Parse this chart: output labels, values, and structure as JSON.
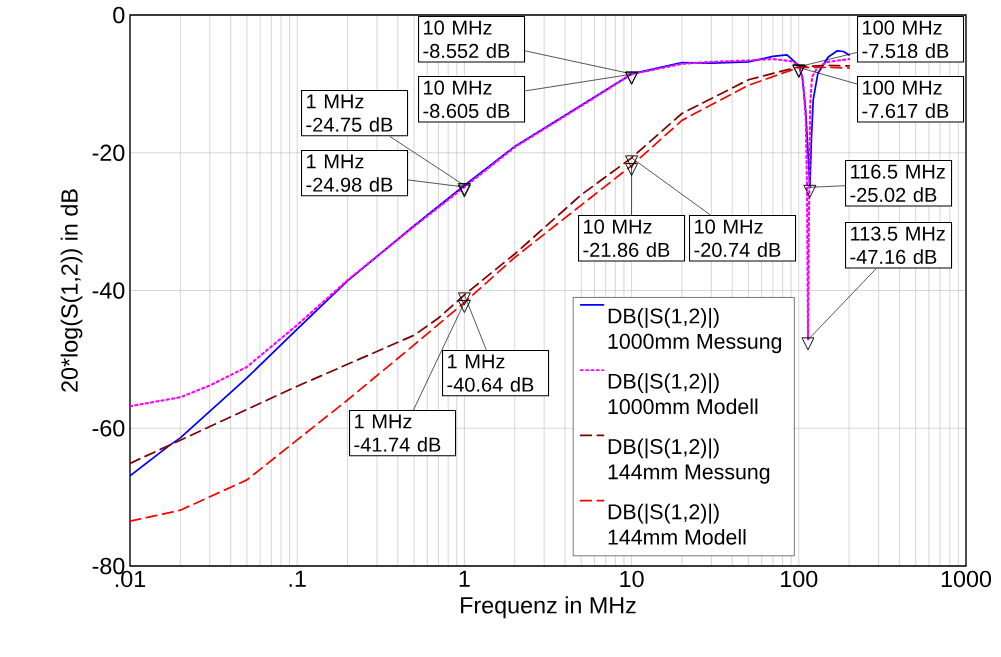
{
  "chart_data": {
    "type": "line",
    "xlabel": "Frequenz in MHz",
    "ylabel": "20*log(S(1,2)) in dB",
    "log": "x",
    "grid": true,
    "legend": "bottom right",
    "marker": "none",
    "xlim": [
      0.01,
      1000
    ],
    "ylim": [
      -80,
      0
    ],
    "xticks": [
      {
        "value": 0.01,
        "label": ".01"
      },
      {
        "value": 0.1,
        "label": ".1"
      },
      1,
      10,
      100,
      1000
    ],
    "yticks": [
      -80,
      -60,
      -40,
      -20,
      0
    ],
    "series": [
      {
        "name": "DB(|S(1,2)|) 1000mm Messung",
        "color": "#0000ff",
        "line_style": "solid",
        "x": [
          0.01,
          0.017,
          0.02,
          0.05,
          0.1,
          0.2,
          0.5,
          1,
          2,
          5,
          10,
          20,
          30,
          50,
          70,
          85,
          100,
          105,
          110,
          113,
          116.5,
          119,
          122,
          130,
          150,
          170,
          185,
          200
        ],
        "values": [
          -66.9,
          -62.6,
          -61.4,
          -52.7,
          -45.6,
          -38.6,
          -30.6,
          -24.75,
          -19.1,
          -13.1,
          -8.552,
          -6.9,
          -7.0,
          -6.8,
          -6.0,
          -5.8,
          -7.3,
          -9,
          -14,
          -19,
          -25.02,
          -18,
          -12.3,
          -8.5,
          -6.1,
          -5.2,
          -5.3,
          -5.8
        ]
      },
      {
        "name": "DB(|S(1,2)|) 1000mm Modell",
        "color": "#ff00ff",
        "line_style": "dotted",
        "x": [
          0.01,
          0.02,
          0.03,
          0.05,
          0.1,
          0.2,
          0.5,
          1,
          2,
          5,
          10,
          20,
          30,
          50,
          70,
          90,
          100,
          106,
          110,
          112,
          113.5,
          115,
          117,
          120,
          130,
          150,
          200
        ],
        "values": [
          -56.8,
          -55.5,
          -53.8,
          -51.1,
          -45.0,
          -38.5,
          -30.7,
          -24.98,
          -19.2,
          -13.2,
          -8.605,
          -7.1,
          -6.8,
          -6.6,
          -6.4,
          -6.7,
          -7.3,
          -9.5,
          -15,
          -25,
          -47.16,
          -30,
          -13,
          -9,
          -7.5,
          -6.8,
          -6.4
        ]
      },
      {
        "name": "DB(|S(1,2)|) 144mm Messung",
        "color": "#800000",
        "line_style": "dashed",
        "x": [
          0.01,
          0.1,
          0.5,
          0.7,
          1,
          2,
          5,
          10,
          20,
          50,
          100,
          150,
          200
        ],
        "values": [
          -65.1,
          -53.9,
          -46.5,
          -44.0,
          -40.64,
          -34.7,
          -26.1,
          -20.74,
          -14.3,
          -9.4,
          -7.518,
          -7.3,
          -7.4
        ]
      },
      {
        "name": "DB(|S(1,2)|) 144mm Modell",
        "color": "#ff0000",
        "line_style": "dashed",
        "x": [
          0.01,
          0.02,
          0.05,
          0.1,
          0.2,
          0.5,
          1,
          2,
          5,
          10,
          20,
          50,
          100,
          150,
          200
        ],
        "values": [
          -73.5,
          -71.9,
          -67.5,
          -61.7,
          -55.9,
          -47.9,
          -41.74,
          -35.2,
          -27.6,
          -21.86,
          -15.3,
          -10.2,
          -7.617,
          -7.6,
          -7.7
        ]
      }
    ],
    "annotations": [
      {
        "text": "10 MHz -8.552 dB",
        "x": 10,
        "y": -8.552
      },
      {
        "text": "10 MHz -8.605 dB",
        "x": 10,
        "y": -8.605
      },
      {
        "text": "1 MHz -24.75 dB",
        "x": 1,
        "y": -24.75
      },
      {
        "text": "1 MHz -24.98 dB",
        "x": 1,
        "y": -24.98
      },
      {
        "text": "10 MHz -21.86 dB",
        "x": 10,
        "y": -21.86
      },
      {
        "text": "10 MHz -20.74 dB",
        "x": 10,
        "y": -20.74
      },
      {
        "text": "100 MHz -7.518 dB",
        "x": 100,
        "y": -7.518
      },
      {
        "text": "100 MHz -7.617 dB",
        "x": 100,
        "y": -7.617
      },
      {
        "text": "116.5 MHz -25.02 dB",
        "x": 116.5,
        "y": -25.02
      },
      {
        "text": "113.5 MHz -47.16 dB",
        "x": 113.5,
        "y": -47.16
      },
      {
        "text": "1 MHz -40.64 dB",
        "x": 1,
        "y": -40.64
      },
      {
        "text": "1 MHz -41.74 dB",
        "x": 1,
        "y": -41.74
      }
    ]
  }
}
